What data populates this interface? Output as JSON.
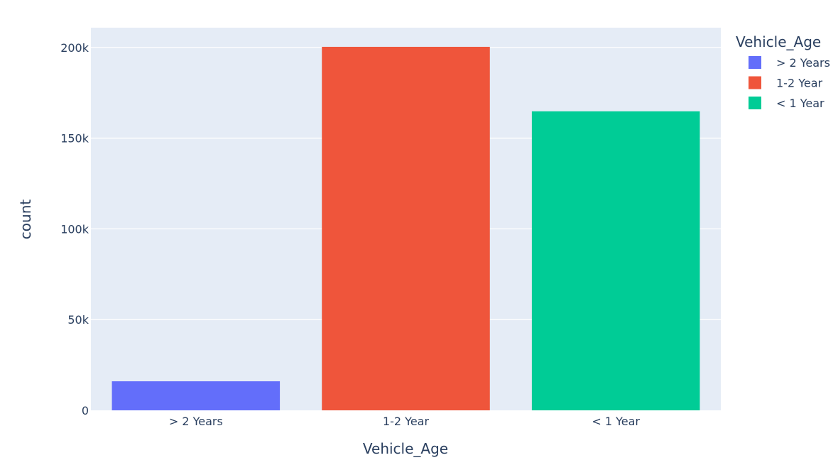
{
  "chart_data": {
    "type": "bar",
    "categories": [
      "> 2 Years",
      "1-2 Year",
      "< 1 Year"
    ],
    "values": [
      16007,
      200316,
      164786
    ],
    "colors": [
      "#636efa",
      "#ef553b",
      "#00cc96"
    ],
    "xlabel": "Vehicle_Age",
    "ylabel": "count",
    "ylim": [
      0,
      210864
    ],
    "yticks": [
      0,
      50000,
      100000,
      150000,
      200000
    ],
    "ytick_labels": [
      "0",
      "50k",
      "100k",
      "150k",
      "200k"
    ],
    "grid": true,
    "plot_background": "#e5ecf6",
    "legend": {
      "title": "Vehicle_Age",
      "position": "top-right",
      "entries": [
        "> 2 Years",
        "1-2 Year",
        "< 1 Year"
      ]
    }
  }
}
